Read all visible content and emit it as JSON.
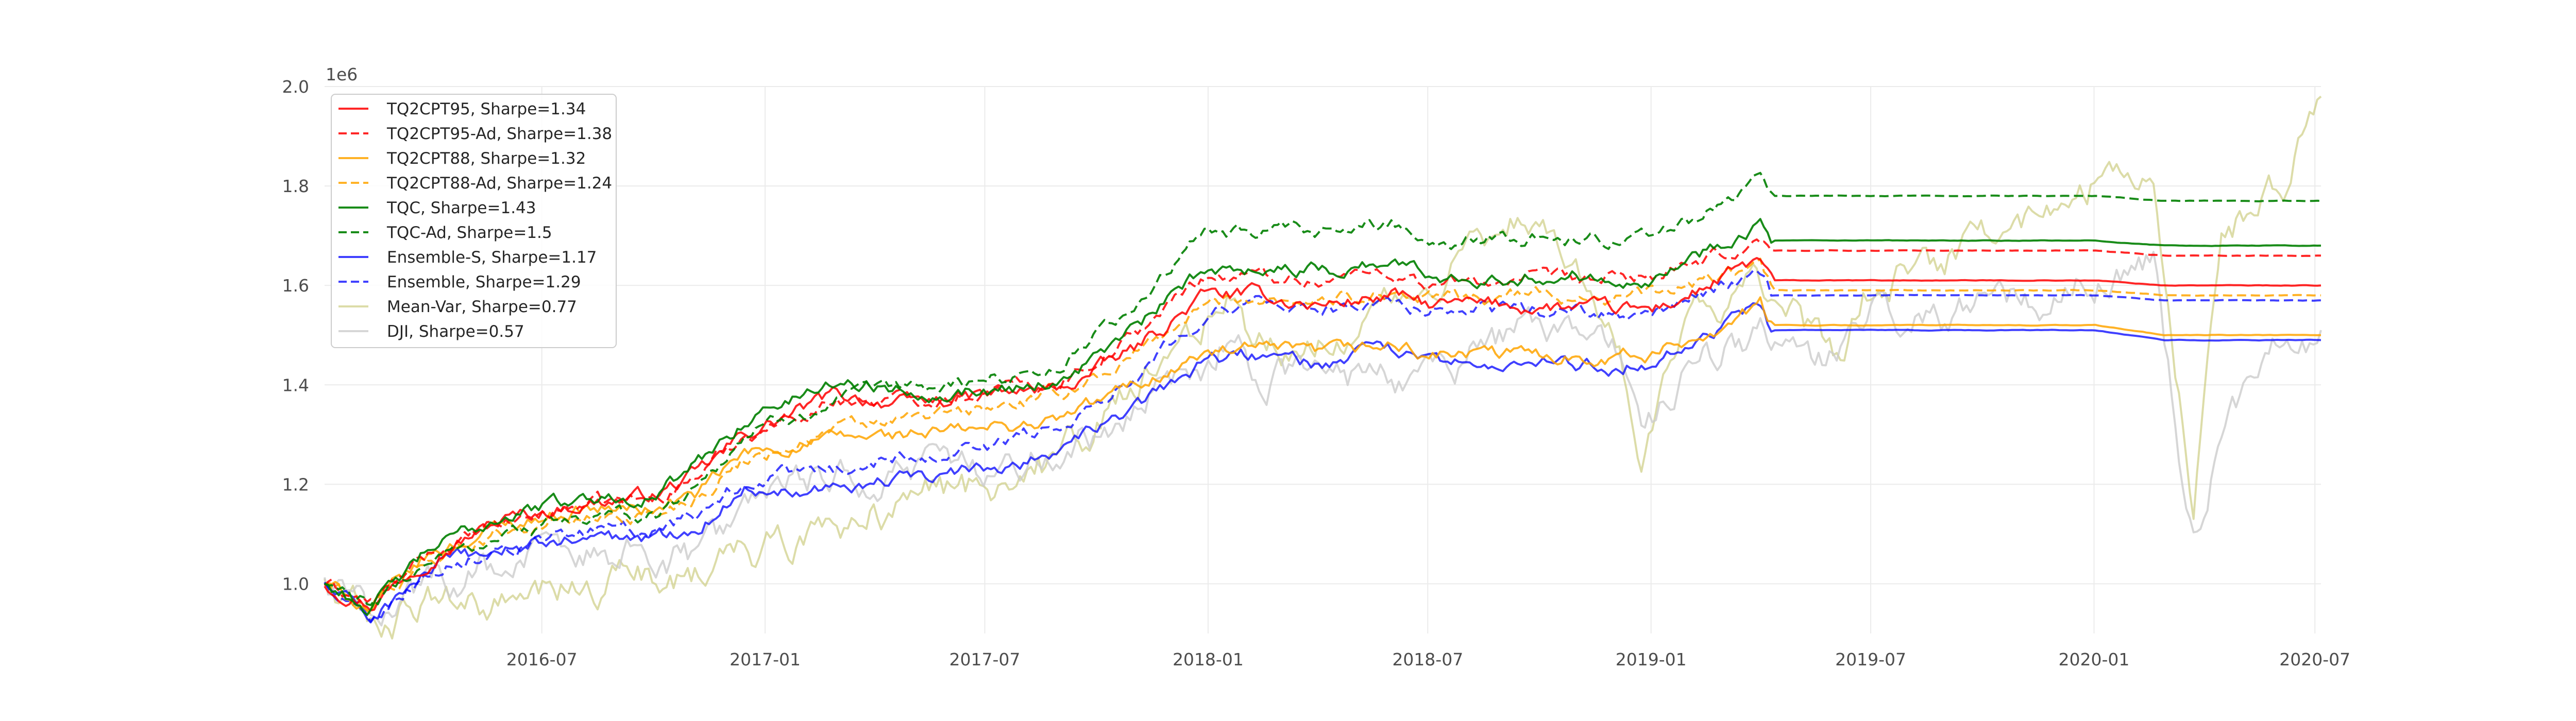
{
  "chart_data": {
    "type": "line",
    "title": "",
    "xlabel": "",
    "ylabel": "",
    "y_offset_label": "1e6",
    "xlim": [
      "2016-01-04",
      "2020-07-06"
    ],
    "ylim": [
      0.9,
      2.0
    ],
    "x_ticks": [
      {
        "date": "2016-07-01",
        "label": "2016-07"
      },
      {
        "date": "2017-01-01",
        "label": "2017-01"
      },
      {
        "date": "2017-07-01",
        "label": "2017-07"
      },
      {
        "date": "2018-01-01",
        "label": "2018-01"
      },
      {
        "date": "2018-07-01",
        "label": "2018-07"
      },
      {
        "date": "2019-01-01",
        "label": "2019-01"
      },
      {
        "date": "2019-07-01",
        "label": "2019-07"
      },
      {
        "date": "2020-01-01",
        "label": "2020-01"
      },
      {
        "date": "2020-07-01",
        "label": "2020-07"
      }
    ],
    "y_ticks": [
      {
        "value": 1.0,
        "label": "1.0"
      },
      {
        "value": 1.2,
        "label": "1.2"
      },
      {
        "value": 1.4,
        "label": "1.4"
      },
      {
        "value": 1.6,
        "label": "1.6"
      },
      {
        "value": 1.8,
        "label": "1.8"
      },
      {
        "value": 2.0,
        "label": "2.0"
      }
    ],
    "grid": true,
    "legend_position": "top-left",
    "series": [
      {
        "name": "TQ2CPT95, Sharpe=1.34",
        "color": "#ff0000",
        "dash": "solid",
        "opacity": 0.85,
        "x": [
          "2016-01-04",
          "2016-02-11",
          "2016-04-01",
          "2016-06-01",
          "2016-08-01",
          "2016-10-03",
          "2016-11-07",
          "2016-12-15",
          "2017-03-01",
          "2017-05-01",
          "2017-07-03",
          "2017-09-01",
          "2017-11-01",
          "2017-12-29",
          "2018-02-09",
          "2018-04-02",
          "2018-06-01",
          "2018-07-02",
          "2018-09-04",
          "2018-12-03",
          "2019-01-02",
          "2019-02-01",
          "2019-04-01",
          "2019-04-10",
          "2019-07-01",
          "2020-01-02",
          "2020-02-28",
          "2020-07-06"
        ],
        "y": [
          1.0,
          0.96,
          1.06,
          1.13,
          1.16,
          1.18,
          1.22,
          1.3,
          1.38,
          1.36,
          1.38,
          1.39,
          1.47,
          1.58,
          1.58,
          1.56,
          1.58,
          1.56,
          1.56,
          1.55,
          1.55,
          1.58,
          1.65,
          1.61,
          1.61,
          1.61,
          1.6,
          1.6
        ]
      },
      {
        "name": "TQ2CPT95-Ad, Sharpe=1.38",
        "color": "#ff0000",
        "dash": "dashed",
        "opacity": 0.85,
        "x": [
          "2016-01-04",
          "2016-02-11",
          "2016-04-01",
          "2016-06-01",
          "2016-08-01",
          "2016-10-03",
          "2016-11-07",
          "2016-12-15",
          "2017-03-01",
          "2017-05-01",
          "2017-07-03",
          "2017-09-01",
          "2017-11-01",
          "2017-12-29",
          "2018-02-09",
          "2018-04-02",
          "2018-06-01",
          "2018-07-02",
          "2018-09-04",
          "2018-12-03",
          "2019-01-02",
          "2019-02-01",
          "2019-04-01",
          "2019-04-10",
          "2019-07-01",
          "2020-01-02",
          "2020-02-28",
          "2020-07-06"
        ],
        "y": [
          1.0,
          0.96,
          1.06,
          1.12,
          1.16,
          1.17,
          1.22,
          1.3,
          1.37,
          1.37,
          1.39,
          1.41,
          1.5,
          1.62,
          1.62,
          1.61,
          1.63,
          1.6,
          1.61,
          1.61,
          1.62,
          1.63,
          1.69,
          1.67,
          1.67,
          1.67,
          1.66,
          1.66
        ]
      },
      {
        "name": "TQ2CPT88, Sharpe=1.32",
        "color": "#ffa500",
        "dash": "solid",
        "opacity": 0.85,
        "x": [
          "2016-01-04",
          "2016-02-11",
          "2016-04-01",
          "2016-06-01",
          "2016-08-01",
          "2016-10-03",
          "2016-11-07",
          "2016-12-15",
          "2017-03-01",
          "2017-05-01",
          "2017-07-03",
          "2017-09-01",
          "2017-11-01",
          "2017-12-29",
          "2018-02-09",
          "2018-04-02",
          "2018-06-01",
          "2018-07-02",
          "2018-09-04",
          "2018-12-03",
          "2019-01-02",
          "2019-02-01",
          "2019-04-01",
          "2019-04-10",
          "2019-07-01",
          "2020-01-02",
          "2020-02-28",
          "2020-07-06"
        ],
        "y": [
          1.0,
          0.95,
          1.06,
          1.12,
          1.15,
          1.15,
          1.18,
          1.26,
          1.29,
          1.3,
          1.31,
          1.33,
          1.4,
          1.46,
          1.47,
          1.46,
          1.48,
          1.46,
          1.46,
          1.46,
          1.46,
          1.49,
          1.56,
          1.52,
          1.52,
          1.52,
          1.5,
          1.5
        ]
      },
      {
        "name": "TQ2CPT88-Ad, Sharpe=1.24",
        "color": "#ffa500",
        "dash": "dashed",
        "opacity": 0.85,
        "x": [
          "2016-01-04",
          "2016-02-11",
          "2016-04-01",
          "2016-06-01",
          "2016-08-01",
          "2016-10-03",
          "2016-11-07",
          "2016-12-15",
          "2017-03-01",
          "2017-05-01",
          "2017-07-03",
          "2017-09-01",
          "2017-11-01",
          "2017-12-29",
          "2018-02-09",
          "2018-04-02",
          "2018-06-01",
          "2018-07-02",
          "2018-09-04",
          "2018-12-03",
          "2019-01-02",
          "2019-02-01",
          "2019-04-01",
          "2019-04-10",
          "2019-07-01",
          "2020-01-02",
          "2020-02-28",
          "2020-07-06"
        ],
        "y": [
          1.0,
          0.95,
          1.05,
          1.11,
          1.13,
          1.14,
          1.18,
          1.25,
          1.31,
          1.33,
          1.35,
          1.38,
          1.46,
          1.56,
          1.58,
          1.57,
          1.59,
          1.57,
          1.58,
          1.58,
          1.58,
          1.6,
          1.64,
          1.59,
          1.59,
          1.59,
          1.58,
          1.58
        ]
      },
      {
        "name": "TQC, Sharpe=1.43",
        "color": "#008000",
        "dash": "solid",
        "opacity": 0.9,
        "x": [
          "2016-01-04",
          "2016-02-11",
          "2016-04-01",
          "2016-06-01",
          "2016-08-01",
          "2016-10-03",
          "2016-11-07",
          "2016-12-15",
          "2017-03-01",
          "2017-05-01",
          "2017-07-03",
          "2017-09-01",
          "2017-11-01",
          "2017-12-29",
          "2018-02-09",
          "2018-04-02",
          "2018-06-01",
          "2018-07-02",
          "2018-09-04",
          "2018-12-03",
          "2019-01-02",
          "2019-02-01",
          "2019-04-01",
          "2019-04-10",
          "2019-07-01",
          "2020-01-02",
          "2020-02-28",
          "2020-07-06"
        ],
        "y": [
          1.0,
          0.95,
          1.07,
          1.14,
          1.17,
          1.18,
          1.24,
          1.33,
          1.41,
          1.39,
          1.39,
          1.41,
          1.51,
          1.63,
          1.64,
          1.63,
          1.65,
          1.62,
          1.62,
          1.62,
          1.62,
          1.65,
          1.73,
          1.69,
          1.69,
          1.69,
          1.68,
          1.68
        ]
      },
      {
        "name": "TQC-Ad, Sharpe=1.5",
        "color": "#008000",
        "dash": "dashed",
        "opacity": 0.9,
        "x": [
          "2016-01-04",
          "2016-02-11",
          "2016-04-01",
          "2016-06-01",
          "2016-08-01",
          "2016-10-03",
          "2016-11-07",
          "2016-12-15",
          "2017-03-01",
          "2017-05-01",
          "2017-07-03",
          "2017-09-01",
          "2017-11-01",
          "2017-12-29",
          "2018-02-09",
          "2018-04-02",
          "2018-06-01",
          "2018-07-02",
          "2018-09-04",
          "2018-12-03",
          "2019-01-02",
          "2019-02-01",
          "2019-04-01",
          "2019-04-10",
          "2019-07-01",
          "2020-01-02",
          "2020-02-28",
          "2020-07-06"
        ],
        "y": [
          1.0,
          0.95,
          1.05,
          1.1,
          1.13,
          1.14,
          1.2,
          1.3,
          1.37,
          1.39,
          1.41,
          1.44,
          1.56,
          1.7,
          1.71,
          1.7,
          1.73,
          1.69,
          1.7,
          1.69,
          1.7,
          1.73,
          1.82,
          1.78,
          1.78,
          1.78,
          1.77,
          1.77
        ]
      },
      {
        "name": "Ensemble-S, Sharpe=1.17",
        "color": "#0000ff",
        "dash": "solid",
        "opacity": 0.75,
        "x": [
          "2016-01-04",
          "2016-02-11",
          "2016-04-01",
          "2016-06-01",
          "2016-08-01",
          "2016-10-03",
          "2016-11-07",
          "2016-12-15",
          "2017-03-01",
          "2017-05-01",
          "2017-07-03",
          "2017-09-01",
          "2017-11-01",
          "2017-12-29",
          "2018-02-09",
          "2018-04-02",
          "2018-06-01",
          "2018-07-02",
          "2018-09-04",
          "2018-12-03",
          "2019-01-02",
          "2019-02-01",
          "2019-04-01",
          "2019-04-10",
          "2019-07-01",
          "2020-01-02",
          "2020-02-28",
          "2020-07-06"
        ],
        "y": [
          1.0,
          0.93,
          1.03,
          1.07,
          1.09,
          1.09,
          1.12,
          1.19,
          1.2,
          1.21,
          1.23,
          1.27,
          1.35,
          1.45,
          1.46,
          1.44,
          1.47,
          1.44,
          1.44,
          1.44,
          1.45,
          1.49,
          1.55,
          1.51,
          1.51,
          1.51,
          1.49,
          1.49
        ]
      },
      {
        "name": "Ensemble, Sharpe=1.29",
        "color": "#0000ff",
        "dash": "dashed",
        "opacity": 0.75,
        "x": [
          "2016-01-04",
          "2016-02-11",
          "2016-04-01",
          "2016-06-01",
          "2016-08-01",
          "2016-10-03",
          "2016-11-07",
          "2016-12-15",
          "2017-03-01",
          "2017-05-01",
          "2017-07-03",
          "2017-09-01",
          "2017-11-01",
          "2017-12-29",
          "2018-02-09",
          "2018-04-02",
          "2018-06-01",
          "2018-07-02",
          "2018-09-04",
          "2018-12-03",
          "2019-01-02",
          "2019-02-01",
          "2019-04-01",
          "2019-04-10",
          "2019-07-01",
          "2020-01-02",
          "2020-02-28",
          "2020-07-06"
        ],
        "y": [
          1.0,
          0.94,
          1.03,
          1.08,
          1.1,
          1.11,
          1.14,
          1.21,
          1.23,
          1.26,
          1.28,
          1.32,
          1.42,
          1.55,
          1.56,
          1.55,
          1.57,
          1.55,
          1.55,
          1.54,
          1.54,
          1.57,
          1.62,
          1.58,
          1.58,
          1.58,
          1.57,
          1.57
        ]
      },
      {
        "name": "Mean-Var, Sharpe=0.77",
        "color": "#c9c97a",
        "dash": "solid",
        "opacity": 0.65,
        "x": [
          "2016-01-04",
          "2016-02-11",
          "2016-04-01",
          "2016-06-01",
          "2016-08-01",
          "2016-10-03",
          "2016-11-07",
          "2016-12-15",
          "2017-03-01",
          "2017-05-01",
          "2017-07-03",
          "2017-09-01",
          "2017-11-01",
          "2017-12-29",
          "2018-01-26",
          "2018-02-09",
          "2018-04-02",
          "2018-06-01",
          "2018-07-02",
          "2018-09-04",
          "2018-10-01",
          "2018-12-03",
          "2018-12-24",
          "2019-02-01",
          "2019-04-01",
          "2019-06-03",
          "2019-07-01",
          "2019-09-03",
          "2019-12-02",
          "2020-02-19",
          "2020-03-23",
          "2020-04-15",
          "2020-06-08",
          "2020-07-06"
        ],
        "y": [
          1.0,
          0.92,
          0.96,
          0.95,
          0.99,
          1.02,
          1.03,
          1.05,
          1.12,
          1.16,
          1.2,
          1.25,
          1.38,
          1.52,
          1.6,
          1.48,
          1.49,
          1.55,
          1.6,
          1.73,
          1.75,
          1.53,
          1.28,
          1.56,
          1.6,
          1.45,
          1.6,
          1.66,
          1.77,
          1.86,
          1.13,
          1.69,
          1.82,
          1.98
        ]
      },
      {
        "name": "DJI, Sharpe=0.57",
        "color": "#cccccc",
        "dash": "solid",
        "opacity": 0.8,
        "x": [
          "2016-01-04",
          "2016-02-11",
          "2016-04-01",
          "2016-06-01",
          "2016-08-01",
          "2016-10-03",
          "2016-11-07",
          "2016-12-15",
          "2017-03-01",
          "2017-05-01",
          "2017-07-03",
          "2017-09-01",
          "2017-11-01",
          "2017-12-29",
          "2018-01-26",
          "2018-02-09",
          "2018-04-02",
          "2018-06-01",
          "2018-07-02",
          "2018-09-04",
          "2018-10-01",
          "2018-12-03",
          "2018-12-24",
          "2019-02-01",
          "2019-04-01",
          "2019-06-03",
          "2019-07-01",
          "2019-09-03",
          "2019-12-02",
          "2020-02-19",
          "2020-03-23",
          "2020-04-15",
          "2020-06-08",
          "2020-07-06"
        ],
        "y": [
          1.0,
          0.94,
          1.01,
          1.04,
          1.07,
          1.06,
          1.05,
          1.14,
          1.22,
          1.22,
          1.24,
          1.27,
          1.35,
          1.44,
          1.53,
          1.42,
          1.41,
          1.42,
          1.41,
          1.5,
          1.53,
          1.45,
          1.32,
          1.44,
          1.5,
          1.45,
          1.55,
          1.54,
          1.59,
          1.66,
          1.08,
          1.32,
          1.5,
          1.51
        ]
      }
    ]
  }
}
